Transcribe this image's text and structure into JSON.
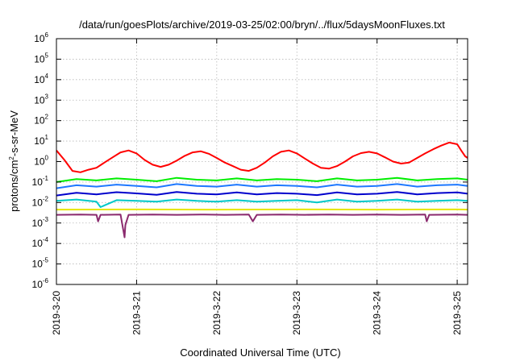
{
  "chart_data": {
    "type": "line",
    "title": "/data/run/goesPlots/archive/2019-03-25/02:00/bryn/../flux/5daysMoonFluxes.txt",
    "xlabel": "Coordinated Universal Time (UTC)",
    "ylabel": "protons/cm2-s-sr-MeV",
    "ylabel_base": "protons/cm",
    "ylabel_sup": "2",
    "ylabel_rest": "-s-sr-MeV",
    "yscale": "log",
    "ylim": [
      1e-06,
      1000000
    ],
    "xlim": [
      0,
      5.13
    ],
    "grid": true,
    "x_ticks": [
      {
        "x": 0,
        "label": "2019-3-20"
      },
      {
        "x": 1,
        "label": "2019-3-21"
      },
      {
        "x": 2,
        "label": "2019-3-22"
      },
      {
        "x": 3,
        "label": "2019-3-23"
      },
      {
        "x": 4,
        "label": "2019-3-24"
      },
      {
        "x": 5,
        "label": "2019-3-25"
      }
    ],
    "y_ticks": [
      {
        "exp": -6,
        "base": "10",
        "sup": "-6"
      },
      {
        "exp": -5,
        "base": "10",
        "sup": "-5"
      },
      {
        "exp": -4,
        "base": "10",
        "sup": "-4"
      },
      {
        "exp": -3,
        "base": "10",
        "sup": "-3"
      },
      {
        "exp": -2,
        "base": "10",
        "sup": "-2"
      },
      {
        "exp": -1,
        "base": "10",
        "sup": "-1"
      },
      {
        "exp": 0,
        "base": "10",
        "sup": "0"
      },
      {
        "exp": 1,
        "base": "10",
        "sup": "1"
      },
      {
        "exp": 2,
        "base": "10",
        "sup": "2"
      },
      {
        "exp": 3,
        "base": "10",
        "sup": "3"
      },
      {
        "exp": 4,
        "base": "10",
        "sup": "4"
      },
      {
        "exp": 5,
        "base": "10",
        "sup": "5"
      },
      {
        "exp": 6,
        "base": "10",
        "sup": "6"
      }
    ],
    "series": [
      {
        "color": "#ff0000",
        "x": [
          0,
          0.1,
          0.2,
          0.3,
          0.4,
          0.5,
          0.6,
          0.7,
          0.8,
          0.9,
          1.0,
          1.1,
          1.2,
          1.3,
          1.4,
          1.5,
          1.6,
          1.7,
          1.8,
          1.9,
          2.0,
          2.1,
          2.2,
          2.3,
          2.4,
          2.5,
          2.6,
          2.7,
          2.8,
          2.9,
          3.0,
          3.1,
          3.2,
          3.3,
          3.4,
          3.5,
          3.6,
          3.7,
          3.8,
          3.9,
          4.0,
          4.1,
          4.2,
          4.3,
          4.4,
          4.5,
          4.6,
          4.7,
          4.8,
          4.9,
          5.0,
          5.05,
          5.1,
          5.13
        ],
        "y": [
          3.5,
          1.2,
          0.35,
          0.3,
          0.4,
          0.5,
          0.9,
          1.6,
          2.8,
          3.5,
          2.5,
          1.2,
          0.7,
          0.55,
          0.7,
          1.1,
          1.9,
          2.8,
          3.2,
          2.4,
          1.5,
          0.9,
          0.6,
          0.4,
          0.35,
          0.5,
          0.9,
          1.8,
          3.0,
          3.5,
          2.5,
          1.4,
          0.8,
          0.5,
          0.45,
          0.6,
          1.0,
          1.8,
          2.6,
          3.0,
          2.5,
          1.6,
          1.0,
          0.8,
          0.9,
          1.5,
          2.5,
          4.0,
          6.0,
          8.5,
          7.0,
          3.5,
          1.8,
          1.5
        ]
      },
      {
        "color": "#00ee00",
        "x": [
          0,
          0.25,
          0.5,
          0.75,
          1.0,
          1.25,
          1.5,
          1.75,
          2.0,
          2.25,
          2.5,
          2.75,
          3.0,
          3.25,
          3.5,
          3.75,
          4.0,
          4.25,
          4.5,
          4.75,
          5.0,
          5.13
        ],
        "y": [
          0.1,
          0.14,
          0.12,
          0.15,
          0.13,
          0.11,
          0.16,
          0.13,
          0.12,
          0.15,
          0.12,
          0.14,
          0.13,
          0.11,
          0.15,
          0.12,
          0.13,
          0.16,
          0.12,
          0.14,
          0.15,
          0.13
        ]
      },
      {
        "color": "#1e78ff",
        "x": [
          0,
          0.25,
          0.5,
          0.75,
          1.0,
          1.25,
          1.5,
          1.75,
          2.0,
          2.25,
          2.5,
          2.75,
          3.0,
          3.25,
          3.5,
          3.75,
          4.0,
          4.25,
          4.5,
          4.75,
          5.0,
          5.13
        ],
        "y": [
          0.05,
          0.07,
          0.06,
          0.075,
          0.065,
          0.055,
          0.08,
          0.065,
          0.06,
          0.075,
          0.06,
          0.07,
          0.065,
          0.055,
          0.075,
          0.06,
          0.065,
          0.08,
          0.06,
          0.07,
          0.075,
          0.065
        ]
      },
      {
        "color": "#0000cc",
        "x": [
          0,
          0.25,
          0.5,
          0.75,
          1.0,
          1.25,
          1.5,
          1.75,
          2.0,
          2.25,
          2.5,
          2.75,
          3.0,
          3.25,
          3.5,
          3.75,
          4.0,
          4.25,
          4.5,
          4.75,
          5.0,
          5.13
        ],
        "y": [
          0.022,
          0.03,
          0.025,
          0.032,
          0.028,
          0.024,
          0.033,
          0.027,
          0.025,
          0.031,
          0.025,
          0.029,
          0.027,
          0.023,
          0.031,
          0.025,
          0.027,
          0.033,
          0.025,
          0.029,
          0.031,
          0.027
        ]
      },
      {
        "color": "#00c8c8",
        "x": [
          0,
          0.25,
          0.5,
          0.55,
          0.75,
          1.0,
          1.25,
          1.5,
          1.75,
          2.0,
          2.25,
          2.5,
          2.75,
          3.0,
          3.25,
          3.5,
          3.75,
          4.0,
          4.25,
          4.5,
          4.75,
          5.0,
          5.13
        ],
        "y": [
          0.012,
          0.014,
          0.011,
          0.006,
          0.013,
          0.012,
          0.011,
          0.014,
          0.012,
          0.011,
          0.013,
          0.011,
          0.012,
          0.013,
          0.01,
          0.014,
          0.011,
          0.012,
          0.014,
          0.011,
          0.012,
          0.013,
          0.012
        ]
      },
      {
        "color": "#e6e600",
        "x": [
          0,
          1.0,
          2.0,
          3.0,
          4.0,
          5.0,
          5.13
        ],
        "y": [
          0.0045,
          0.0046,
          0.0045,
          0.0046,
          0.0045,
          0.0046,
          0.0045
        ]
      },
      {
        "color": "#8b2a6e",
        "x": [
          0,
          0.3,
          0.5,
          0.52,
          0.55,
          0.8,
          0.85,
          0.86,
          0.9,
          1.2,
          1.5,
          1.8,
          2.1,
          2.4,
          2.45,
          2.5,
          2.8,
          3.1,
          3.4,
          3.7,
          4.0,
          4.3,
          4.6,
          4.62,
          4.65,
          5.0,
          5.13
        ],
        "y": [
          0.0025,
          0.0026,
          0.0025,
          0.0012,
          0.0025,
          0.0026,
          0.0002,
          0.0008,
          0.0025,
          0.0026,
          0.0025,
          0.0026,
          0.0025,
          0.0026,
          0.0012,
          0.0025,
          0.0026,
          0.0025,
          0.0026,
          0.0025,
          0.0026,
          0.0025,
          0.0026,
          0.0012,
          0.0025,
          0.0026,
          0.0025
        ]
      }
    ]
  }
}
